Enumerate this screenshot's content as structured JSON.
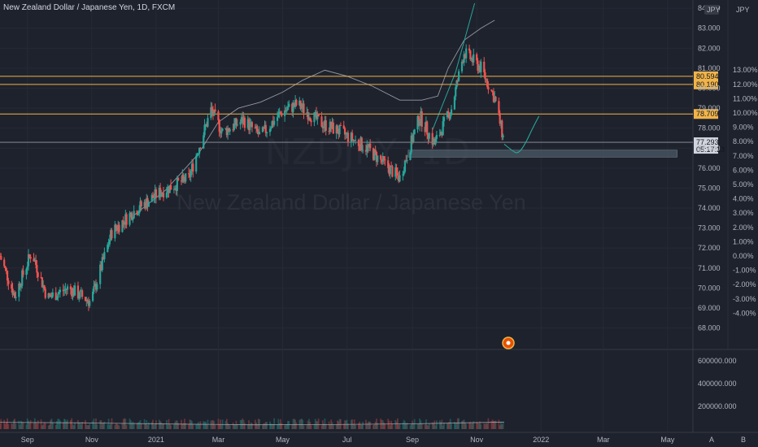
{
  "header": {
    "title": "New Zealand Dollar / Japanese Yen, 1D, FXCM"
  },
  "watermark": {
    "symbol": "NZDJPY, 1D",
    "name": "New Zealand Dollar / Japanese Yen"
  },
  "axes": {
    "price_currency": "JPY",
    "pct_currency": "JPY",
    "price_ticks": [
      "84.000",
      "83.000",
      "82.000",
      "81.000",
      "80.000",
      "79.000",
      "78.000",
      "77.000",
      "76.000",
      "75.000",
      "74.000",
      "73.000",
      "72.000",
      "71.000",
      "70.000",
      "69.000",
      "68.000"
    ],
    "pct_ticks": [
      "13.00%",
      "12.00%",
      "11.00%",
      "10.00%",
      "9.00%",
      "8.00%",
      "7.00%",
      "6.00%",
      "5.00%",
      "4.00%",
      "3.00%",
      "2.00%",
      "1.00%",
      "0.00%",
      "-1.00%",
      "-2.00%",
      "-3.00%",
      "-4.00%"
    ],
    "volume_ticks": [
      "600000.000",
      "400000.000",
      "200000.000"
    ],
    "time_ticks": [
      "Sep",
      "Nov",
      "2021",
      "Mar",
      "May",
      "Jul",
      "Sep",
      "Nov",
      "2022",
      "Mar",
      "May"
    ],
    "corner_labels": [
      "A",
      "B"
    ]
  },
  "levels": [
    {
      "value": 80.594,
      "label": "80.594",
      "color": "#f0b44a"
    },
    {
      "value": 80.19,
      "label": "80.190",
      "color": "#f0b44a"
    },
    {
      "value": 78.709,
      "label": "78.709",
      "color": "#f0b44a"
    }
  ],
  "last_price": {
    "value": 77.293,
    "label": "77.293",
    "sub_label": "05:17:23"
  },
  "colors": {
    "background": "#1e222d",
    "up": "#26a69a",
    "down": "#ef5350",
    "level": "#f0b44a",
    "band": "#9598a1",
    "projection": "#26a69a",
    "zone": "#4a5966"
  },
  "chart_data": {
    "type": "candlestick",
    "title": "New Zealand Dollar / Japanese Yen, 1D, FXCM",
    "ylabel": "JPY",
    "ylim": [
      67.6,
      84.25
    ],
    "xlim": [
      "2020-08-06",
      "2022-05-25"
    ],
    "anchors": [
      [
        "2020-08-06",
        71.6
      ],
      [
        "2020-08-20",
        69.6
      ],
      [
        "2020-09-05",
        71.8
      ],
      [
        "2020-09-20",
        69.5
      ],
      [
        "2020-10-10",
        70.0
      ],
      [
        "2020-10-31",
        69.3
      ],
      [
        "2020-11-20",
        72.8
      ],
      [
        "2020-12-10",
        73.8
      ],
      [
        "2021-01-05",
        74.8
      ],
      [
        "2021-02-01",
        75.5
      ],
      [
        "2021-02-22",
        78.9
      ],
      [
        "2021-03-05",
        77.8
      ],
      [
        "2021-03-25",
        78.4
      ],
      [
        "2021-04-10",
        77.6
      ],
      [
        "2021-04-30",
        78.8
      ],
      [
        "2021-05-15",
        79.2
      ],
      [
        "2021-06-05",
        78.3
      ],
      [
        "2021-06-25",
        77.8
      ],
      [
        "2021-07-20",
        77.0
      ],
      [
        "2021-08-20",
        75.5
      ],
      [
        "2021-09-08",
        78.6
      ],
      [
        "2021-09-22",
        77.2
      ],
      [
        "2021-10-08",
        79.0
      ],
      [
        "2021-10-20",
        81.8
      ],
      [
        "2021-11-05",
        81.0
      ],
      [
        "2021-11-18",
        79.5
      ],
      [
        "2021-11-27",
        77.3
      ]
    ],
    "projection": [
      [
        "2021-11-27",
        77.2
      ],
      [
        "2021-12-04",
        76.9
      ],
      [
        "2021-12-10",
        76.7
      ],
      [
        "2021-12-17",
        77.2
      ],
      [
        "2021-12-24",
        78.0
      ],
      [
        "2021-12-30",
        78.6
      ]
    ],
    "zone": {
      "from": "2021-08-28",
      "to": "2022-05-25",
      "top": 76.9,
      "bottom": 76.55
    },
    "upper_band": [
      [
        "2020-12-10",
        73.6
      ],
      [
        "2021-01-10",
        74.9
      ],
      [
        "2021-02-10",
        76.7
      ],
      [
        "2021-03-01",
        78.3
      ],
      [
        "2021-03-20",
        79.0
      ],
      [
        "2021-04-10",
        79.3
      ],
      [
        "2021-05-01",
        79.8
      ],
      [
        "2021-05-20",
        80.4
      ],
      [
        "2021-06-10",
        80.9
      ],
      [
        "2021-07-01",
        80.6
      ],
      [
        "2021-07-25",
        80.1
      ],
      [
        "2021-08-20",
        79.4
      ],
      [
        "2021-09-10",
        79.4
      ],
      [
        "2021-09-25",
        79.6
      ],
      [
        "2021-10-05",
        81.0
      ],
      [
        "2021-10-20",
        82.4
      ],
      [
        "2021-11-05",
        83.0
      ],
      [
        "2021-11-18",
        83.4
      ]
    ],
    "steep_line": [
      [
        "2021-09-20",
        77.9
      ],
      [
        "2021-10-12",
        80.8
      ],
      [
        "2021-10-30",
        84.25
      ]
    ],
    "volume": {
      "ylim": [
        0,
        700000
      ],
      "typical": 80000,
      "ma_values": [
        60000,
        55000,
        45000,
        38000,
        40000,
        48000,
        62000
      ]
    }
  }
}
